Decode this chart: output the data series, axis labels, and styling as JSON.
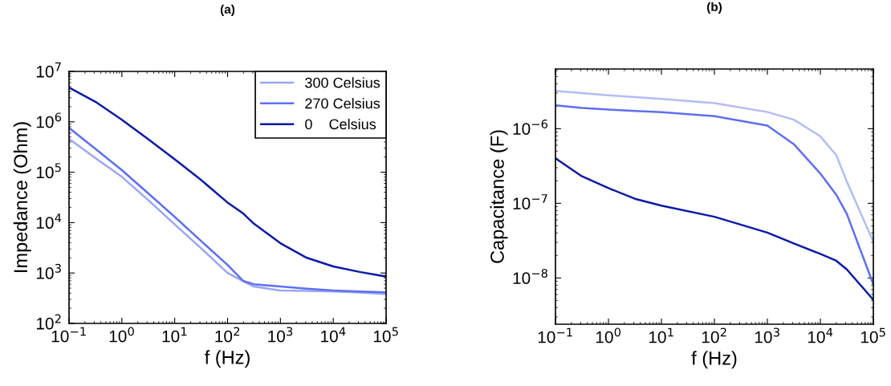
{
  "chart_data": [
    {
      "type": "line",
      "title": "(a)",
      "xlabel": "f (Hz)",
      "ylabel": "Impedance (Ohm)",
      "log": "xy",
      "legend": "top right",
      "grid": false,
      "xlim": [
        0.1,
        100000
      ],
      "ylim": [
        100,
        10000000
      ],
      "xticks": [
        {
          "value": 0.1,
          "label": "10$^{−1}$"
        },
        {
          "value": 1,
          "label": "10$^{0}$"
        },
        {
          "value": 10,
          "label": "10$^{1}$"
        },
        {
          "value": 100,
          "label": "10$^{2}$"
        },
        {
          "value": 1000,
          "label": "10$^{3}$"
        },
        {
          "value": 10000,
          "label": "10$^{4}$"
        },
        {
          "value": 100000,
          "label": "10$^{5}$"
        }
      ],
      "yticks": [
        {
          "value": 100,
          "label": "10$^{2}$"
        },
        {
          "value": 1000,
          "label": "10$^{3}$"
        },
        {
          "value": 10000,
          "label": "10$^{4}$"
        },
        {
          "value": 100000,
          "label": "10$^{5}$"
        },
        {
          "value": 1000000,
          "label": "10$^{6}$"
        },
        {
          "value": 10000000,
          "label": "10$^{7}$"
        }
      ],
      "x": [
        0.1,
        0.316,
        1,
        3.16,
        10,
        31.6,
        100,
        200,
        316,
        1000,
        3162,
        10000,
        31620,
        100000
      ],
      "series": [
        {
          "name": "300 Celsius",
          "color": "#9aa6f5",
          "values": [
            460000,
            190000,
            81000,
            28000,
            9200,
            3100,
            1000,
            680,
            540,
            450,
            440,
            430,
            410,
            380
          ]
        },
        {
          "name": "270 Celsius",
          "color": "#5e6ff0",
          "values": [
            760000,
            290000,
            110000,
            38000,
            13000,
            4300,
            1450,
            690,
            600,
            540,
            490,
            450,
            430,
            415
          ]
        },
        {
          "name": "0    Celsius",
          "color": "#0a1aa8",
          "values": [
            4800000,
            2500000,
            1100000,
            450000,
            180000,
            70000,
            25000,
            15000,
            9500,
            3900,
            2000,
            1350,
            1050,
            850
          ]
        }
      ]
    },
    {
      "type": "line",
      "title": "(b)",
      "xlabel": "f (Hz)",
      "ylabel": "Capacitance (F)",
      "log": "xy",
      "grid": false,
      "xlim": [
        0.1,
        100000
      ],
      "ylim": [
        2.4e-09,
        6.3e-06
      ],
      "xticks": [
        {
          "value": 0.1,
          "label": "10$^{−1}$"
        },
        {
          "value": 1,
          "label": "10$^{0}$"
        },
        {
          "value": 10,
          "label": "10$^{1}$"
        },
        {
          "value": 100,
          "label": "10$^{2}$"
        },
        {
          "value": 1000,
          "label": "10$^{3}$"
        },
        {
          "value": 10000,
          "label": "10$^{4}$"
        },
        {
          "value": 100000,
          "label": "10$^{5}$"
        }
      ],
      "yticks": [
        {
          "value": 1e-08,
          "label": "10$^{−8}$"
        },
        {
          "value": 1e-07,
          "label": "10$^{−7}$"
        },
        {
          "value": 1e-06,
          "label": "10$^{−6}$"
        }
      ],
      "x": [
        0.1,
        0.316,
        1,
        3.16,
        10,
        100,
        1000,
        3162,
        10000,
        20000,
        31620,
        100000
      ],
      "series": [
        {
          "color": "#b4bcf7",
          "values": [
            3.2e-06,
            3e-06,
            2.8e-06,
            2.65e-06,
            2.5e-06,
            2.2e-06,
            1.67e-06,
            1.32e-06,
            7.9e-07,
            4.4e-07,
            1.95e-07,
            3.05e-08
          ]
        },
        {
          "color": "#5e6ff0",
          "values": [
            2.05e-06,
            1.9e-06,
            1.8e-06,
            1.73e-06,
            1.67e-06,
            1.47e-06,
            1.1e-06,
            6.2e-07,
            2.5e-07,
            1.3e-07,
            7.2e-08,
            8.2e-09
          ]
        },
        {
          "color": "#0a1aa8",
          "values": [
            4e-07,
            2.3e-07,
            1.6e-07,
            1.15e-07,
            9.3e-08,
            6.6e-08,
            4.05e-08,
            2.9e-08,
            2.1e-08,
            1.7e-08,
            1.3e-08,
            5.1e-09
          ]
        }
      ]
    }
  ]
}
